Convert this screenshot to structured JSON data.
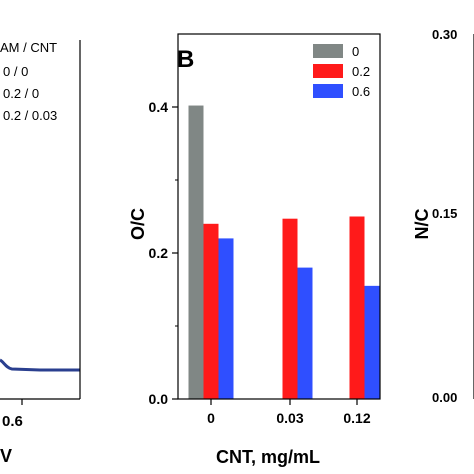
{
  "left_panel": {
    "legend_header": "AM / CNT",
    "legend_entries": [
      "0 / 0",
      "0.2 / 0",
      "0.2 / 0.03"
    ],
    "tick_label": "0.6",
    "axis_label_fragment": "V",
    "trace_color": "#2a3f8f"
  },
  "right_panel": {
    "ylabel": "N/C",
    "ticks": [
      "0.30",
      "0.15",
      "0.00"
    ]
  },
  "chart_data": {
    "type": "bar",
    "panel_label": "B",
    "categories": [
      "0",
      "0.03",
      "0.12"
    ],
    "xlabel": "CNT, mg/mL",
    "ylabel": "O/C",
    "ylim": [
      0,
      0.5
    ],
    "yticks": [
      0,
      0.2,
      0.4
    ],
    "ytick_labels": [
      "0.0",
      "0.2",
      "0.4"
    ],
    "legend_position": "top-right",
    "series": [
      {
        "name": "0",
        "color": "#808785",
        "values": [
          0.402,
          null,
          null
        ]
      },
      {
        "name": "0.2",
        "color": "#ff1a1a",
        "values": [
          0.24,
          0.247,
          0.25
        ]
      },
      {
        "name": "0.6",
        "color": "#2f4fff",
        "values": [
          0.22,
          0.18,
          0.155
        ]
      }
    ]
  }
}
